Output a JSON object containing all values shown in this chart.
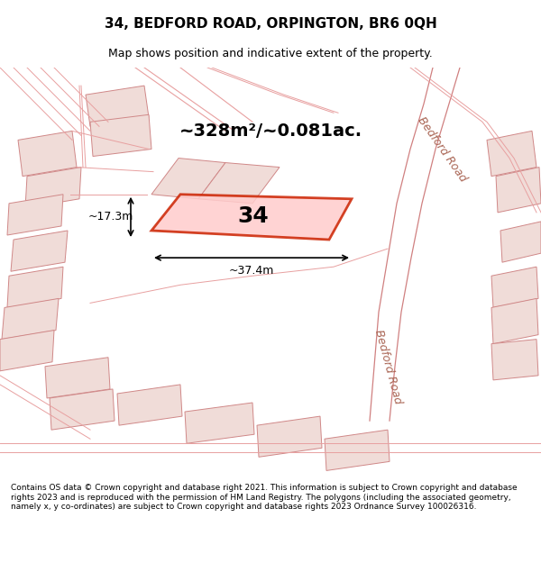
{
  "title": "34, BEDFORD ROAD, ORPINGTON, BR6 0QH",
  "subtitle": "Map shows position and indicative extent of the property.",
  "area_text": "~328m²/~0.081ac.",
  "number_label": "34",
  "dim_width": "~37.4m",
  "dim_height": "~17.3m",
  "footer": "Contains OS data © Crown copyright and database right 2021. This information is subject to Crown copyright and database rights 2023 and is reproduced with the permission of HM Land Registry. The polygons (including the associated geometry, namely x, y co-ordinates) are subject to Crown copyright and database rights 2023 Ordnance Survey 100026316.",
  "bg_color": "#f0ece8",
  "map_bg": "#f0ece8",
  "plot_color_fill": "#f5b0a0",
  "plot_color_edge": "#cc2200",
  "road_label": "Bedford Road",
  "road_label2": "Bedford Road"
}
